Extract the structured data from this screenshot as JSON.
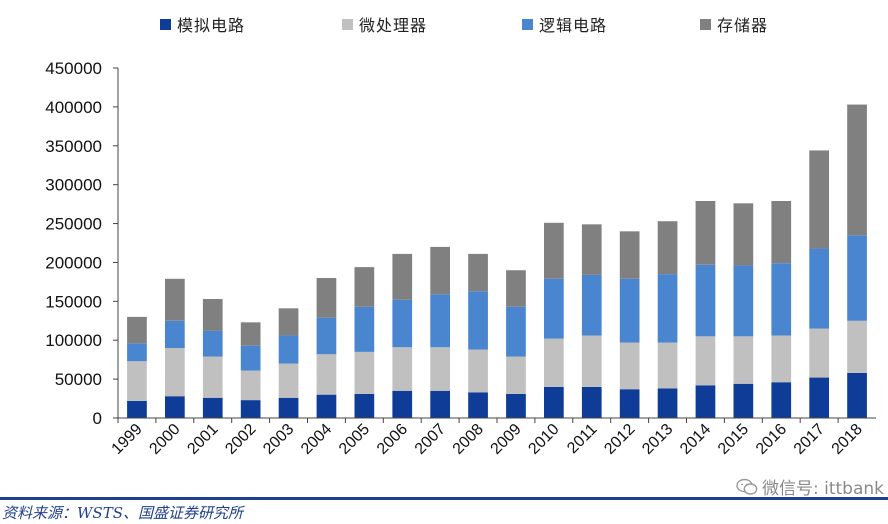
{
  "source_text": "资料来源：WSTS、国盛证券研究所",
  "watermark_text": "微信号: ittbank",
  "chart_data": {
    "type": "bar",
    "stacked": true,
    "categories": [
      "1999",
      "2000",
      "2001",
      "2002",
      "2003",
      "2004",
      "2005",
      "2006",
      "2007",
      "2008",
      "2009",
      "2010",
      "2011",
      "2012",
      "2013",
      "2014",
      "2015",
      "2016",
      "2017",
      "2018"
    ],
    "series": [
      {
        "name": "模拟电路",
        "color": "#0e3c96",
        "values": [
          22000,
          28000,
          26000,
          23000,
          26000,
          30000,
          31000,
          35000,
          35000,
          33000,
          31000,
          40000,
          40000,
          37000,
          38000,
          42000,
          44000,
          46000,
          52000,
          58000
        ]
      },
      {
        "name": "微处理器",
        "color": "#c0c0c0",
        "values": [
          51000,
          62000,
          53000,
          38000,
          44000,
          52000,
          54000,
          56000,
          56000,
          55000,
          48000,
          62000,
          66000,
          60000,
          59000,
          63000,
          61000,
          60000,
          63000,
          67000
        ]
      },
      {
        "name": "逻辑电路",
        "color": "#4a86cf",
        "values": [
          23000,
          35000,
          33000,
          32000,
          36000,
          47000,
          58000,
          61000,
          68000,
          75000,
          64000,
          77000,
          78000,
          82000,
          88000,
          92000,
          91000,
          93000,
          103000,
          110000
        ]
      },
      {
        "name": "存储器",
        "color": "#808080",
        "values": [
          34000,
          54000,
          41000,
          30000,
          35000,
          51000,
          51000,
          59000,
          61000,
          48000,
          47000,
          72000,
          65000,
          61000,
          68000,
          82000,
          80000,
          80000,
          126000,
          168000
        ]
      }
    ],
    "ylim": [
      0,
      450000
    ],
    "yticks": [
      "0",
      "50000",
      "100000",
      "150000",
      "200000",
      "250000",
      "300000",
      "350000",
      "400000",
      "450000"
    ],
    "legend_position": "top",
    "grid": false
  }
}
